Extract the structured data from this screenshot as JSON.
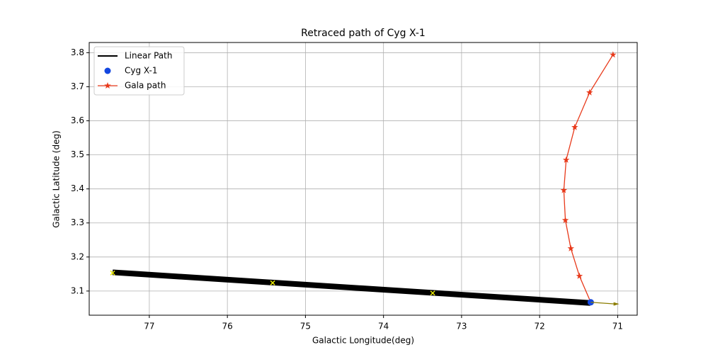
{
  "chart_data": {
    "type": "line",
    "title": "Retraced path of Cyg X-1",
    "xlabel": "Galactic Longitude(deg)",
    "ylabel": "Galactic Latitude (deg)",
    "xlim": [
      77.77,
      70.75
    ],
    "ylim": [
      3.029,
      3.83
    ],
    "xticks": [
      77,
      76,
      75,
      74,
      73,
      72,
      71
    ],
    "yticks": [
      3.1,
      3.2,
      3.3,
      3.4,
      3.5,
      3.6,
      3.7,
      3.8
    ],
    "grid": true,
    "legend": "upper left",
    "series": [
      {
        "name": "Linear Path",
        "type": "line",
        "color": "#000000",
        "x": [
          77.47,
          71.35
        ],
        "values": [
          3.155,
          3.065
        ]
      },
      {
        "name": "Cyg X-1",
        "type": "scatter",
        "color": "#1347e0",
        "x": [
          71.345
        ],
        "values": [
          3.067
        ]
      },
      {
        "name": "Gala path",
        "type": "line-star",
        "color": "#e8391a",
        "x": [
          71.06,
          71.36,
          71.55,
          71.66,
          71.69,
          71.67,
          71.6,
          71.49,
          71.345
        ],
        "values": [
          3.794,
          3.683,
          3.581,
          3.485,
          3.396,
          3.308,
          3.225,
          3.144,
          3.067
        ]
      },
      {
        "type": "x-marker",
        "color": "#e6e600",
        "x": [
          77.47,
          75.42,
          73.37
        ],
        "values": [
          3.153,
          3.124,
          3.094
        ]
      }
    ],
    "arrow": {
      "color": "#8b7d00",
      "x": [
        71.345,
        70.98
      ],
      "y": [
        3.067,
        3.062
      ]
    }
  }
}
